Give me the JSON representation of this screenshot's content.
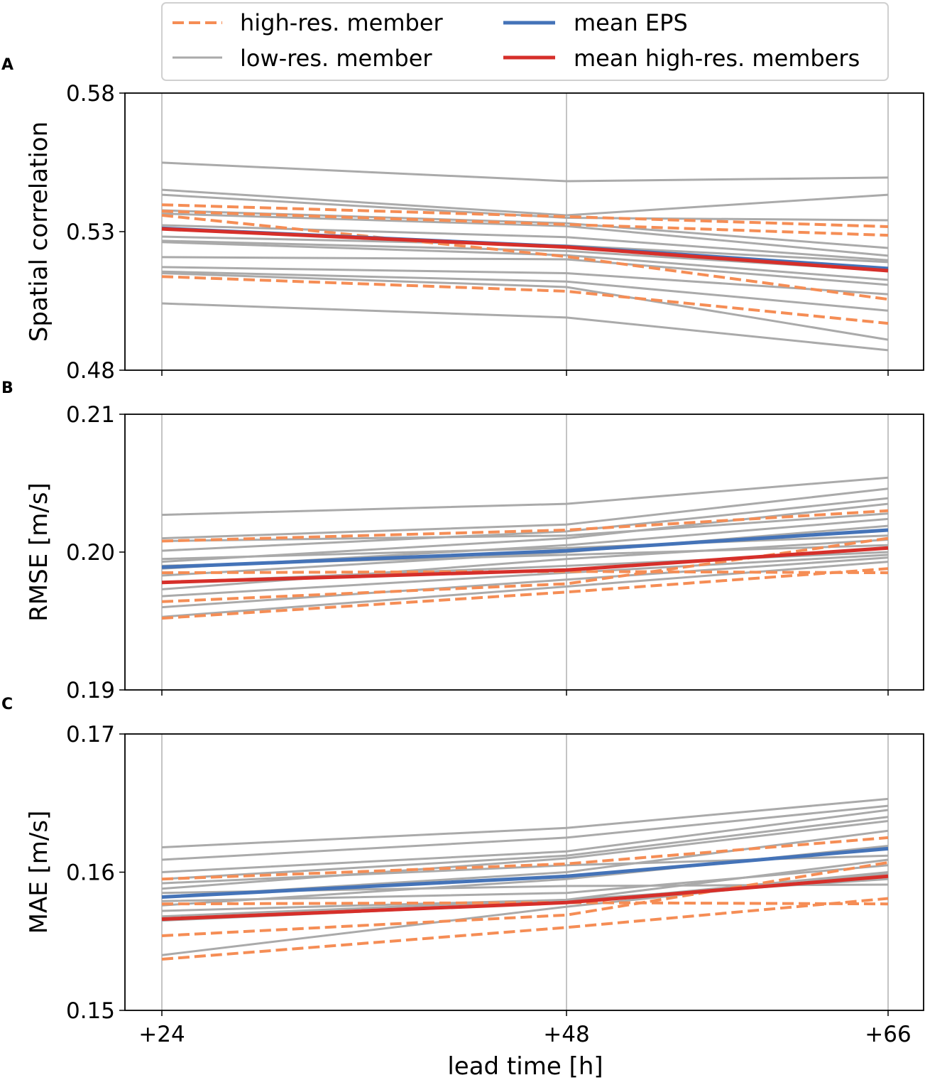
{
  "chart_data": [
    {
      "panel": "A",
      "type": "line",
      "ylabel": "Spatial correlation",
      "ylim": [
        0.48,
        0.58
      ],
      "yticks": [
        "0.48",
        "0.53",
        "0.58"
      ],
      "ytick_values": [
        0.48,
        0.53,
        0.58
      ],
      "x": [
        24,
        48,
        66
      ],
      "low_res": [
        [
          0.5549,
          0.5482,
          0.5495
        ],
        [
          0.5451,
          0.5359,
          0.5433
        ],
        [
          0.5433,
          0.535,
          0.5341
        ],
        [
          0.5377,
          0.533,
          0.5241
        ],
        [
          0.5365,
          0.532,
          0.5213
        ],
        [
          0.5323,
          0.528,
          0.5197
        ],
        [
          0.5282,
          0.525,
          0.519
        ],
        [
          0.5267,
          0.523,
          0.5159
        ],
        [
          0.5262,
          0.5215,
          0.5126
        ],
        [
          0.5208,
          0.52,
          0.5108
        ],
        [
          0.5172,
          0.515,
          0.5074
        ],
        [
          0.5156,
          0.512,
          0.5015
        ],
        [
          0.515,
          0.51,
          0.491
        ],
        [
          0.5041,
          0.499,
          0.4872
        ]
      ],
      "high_res": [
        [
          0.5397,
          0.5354,
          0.5318
        ],
        [
          0.5374,
          0.5326,
          0.5287
        ],
        [
          0.5359,
          0.521,
          0.5056
        ],
        [
          0.5138,
          0.5085,
          0.4969
        ]
      ],
      "mean_eps": [
        0.5312,
        0.5246,
        0.5167
      ],
      "mean_high_res": [
        0.531,
        0.5244,
        0.5159
      ]
    },
    {
      "panel": "B",
      "type": "line",
      "ylabel": "RMSE [m/s]",
      "ylim": [
        0.19,
        0.21
      ],
      "yticks": [
        "0.19",
        "0.20",
        "0.21"
      ],
      "ytick_values": [
        0.19,
        0.2,
        0.21
      ],
      "x": [
        24,
        48,
        66
      ],
      "low_res": [
        [
          0.2027,
          0.2035,
          0.2054
        ],
        [
          0.201,
          0.202,
          0.2046
        ],
        [
          0.2001,
          0.2015,
          0.2039
        ],
        [
          0.1993,
          0.201,
          0.2035
        ],
        [
          0.1988,
          0.2005,
          0.2024
        ],
        [
          0.1983,
          0.2,
          0.2019
        ],
        [
          0.1973,
          0.1995,
          0.2009
        ],
        [
          0.1968,
          0.1985,
          0.1998
        ],
        [
          0.1953,
          0.1975,
          0.1993
        ],
        [
          0.2008,
          0.2012,
          0.2028
        ],
        [
          0.199,
          0.1998,
          0.2005
        ],
        [
          0.1978,
          0.199,
          0.2
        ],
        [
          0.1995,
          0.2003,
          0.2012
        ],
        [
          0.196,
          0.198,
          0.1996
        ]
      ],
      "high_res": [
        [
          0.2008,
          0.2016,
          0.203
        ],
        [
          0.1985,
          0.1986,
          0.1985
        ],
        [
          0.1964,
          0.1977,
          0.201
        ],
        [
          0.1952,
          0.1971,
          0.1988
        ]
      ],
      "mean_eps": [
        0.1989,
        0.2001,
        0.2016
      ],
      "mean_high_res": [
        0.1978,
        0.1987,
        0.2003
      ]
    },
    {
      "panel": "C",
      "type": "line",
      "ylabel": "MAE [m/s]",
      "ylim": [
        0.15,
        0.17
      ],
      "yticks": [
        "0.15",
        "0.16",
        "0.17"
      ],
      "ytick_values": [
        0.15,
        0.16,
        0.17
      ],
      "x": [
        24,
        48,
        66
      ],
      "low_res": [
        [
          0.1618,
          0.1632,
          0.1653
        ],
        [
          0.1609,
          0.1625,
          0.1648
        ],
        [
          0.16,
          0.1615,
          0.1645
        ],
        [
          0.1588,
          0.161,
          0.1637
        ],
        [
          0.1582,
          0.16,
          0.163
        ],
        [
          0.1576,
          0.1595,
          0.1619
        ],
        [
          0.1568,
          0.158,
          0.1609
        ],
        [
          0.154,
          0.1575,
          0.1599
        ],
        [
          0.1592,
          0.1605,
          0.1612
        ],
        [
          0.1585,
          0.159,
          0.1591
        ],
        [
          0.1579,
          0.1585,
          0.1605
        ],
        [
          0.1572,
          0.158,
          0.1595
        ],
        [
          0.1595,
          0.1612,
          0.164
        ],
        [
          0.1565,
          0.1578,
          0.16
        ]
      ],
      "high_res": [
        [
          0.1595,
          0.1606,
          0.1625
        ],
        [
          0.1577,
          0.1578,
          0.1577
        ],
        [
          0.1554,
          0.1569,
          0.1607
        ],
        [
          0.1537,
          0.156,
          0.1581
        ]
      ],
      "mean_eps": [
        0.1582,
        0.1597,
        0.1617
      ],
      "mean_high_res": [
        0.1566,
        0.1578,
        0.1597
      ]
    }
  ],
  "xaxis": {
    "label": "lead time [h]",
    "ticks": [
      "+24",
      "+48",
      "+66"
    ]
  },
  "legend": {
    "high_res": "high-res. member",
    "low_res": "low-res. member",
    "mean_eps": "mean EPS",
    "mean_high_res": "mean high-res. members"
  },
  "colors": {
    "high_res": "#f58d55",
    "low_res": "#aaaaaa",
    "mean_eps": "#4473b8",
    "mean_high_res": "#d62f2a"
  }
}
